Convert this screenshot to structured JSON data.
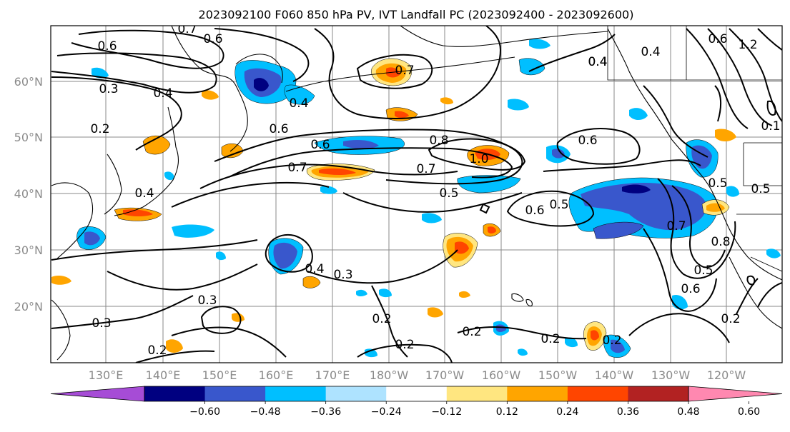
{
  "title": "2023092100 F060 850 hPa PV, IVT Landfall PC (2023092400 - 2023092600)",
  "lat_labels": [
    "60°N",
    "50°N",
    "40°N",
    "30°N",
    "20°N"
  ],
  "lon_labels": [
    "130°E",
    "140°E",
    "150°E",
    "160°E",
    "170°E",
    "180°W",
    "170°W",
    "160°W",
    "150°W",
    "140°W",
    "130°W",
    "120°W"
  ],
  "colorbar": {
    "colors": [
      "#a64cd6",
      "#000080",
      "#3957cc",
      "#00bfff",
      "#aee3ff",
      "#ffffff",
      "#ffe680",
      "#ffa500",
      "#ff4500",
      "#b22222",
      "#ff88b0"
    ],
    "tick_labels": [
      "−0.60",
      "−0.48",
      "−0.36",
      "−0.24",
      "−0.12",
      "0.12",
      "0.24",
      "0.36",
      "0.48",
      "0.60"
    ]
  },
  "contour_labels": [
    "0.7",
    "0.6",
    "0.6",
    "0.3",
    "0.4",
    "0.2",
    "0.4",
    "0.6",
    "0.7",
    "0.4",
    "0.6",
    "0.8",
    "1.0",
    "0.6",
    "0.7",
    "0.7",
    "0.5",
    "0.6",
    "0.5",
    "0.4",
    "0.4",
    "0.3",
    "0.3",
    "0.3",
    "0.2",
    "0.2",
    "0.2",
    "0.2",
    "0.2",
    "0.2",
    "0.6",
    "0.5",
    "0.8",
    "0.2",
    "0.7",
    "0.4",
    "0.4",
    "0.1",
    "1.2",
    "0.5",
    "0.6",
    "0.5"
  ]
}
